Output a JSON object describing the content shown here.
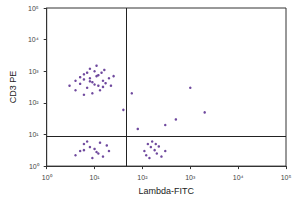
{
  "chart_data": {
    "type": "scatter",
    "x_label": "Lambda-FITC",
    "y_label": "CD3 PE",
    "log": true,
    "grid": false,
    "color": "#4b1c86",
    "xlim": [
      1,
      100000
    ],
    "ylim": [
      1,
      100000
    ],
    "xticks": [
      {
        "value": 1,
        "label": "10⁰"
      },
      {
        "value": 10,
        "label": "10¹"
      },
      {
        "value": 100,
        "label": "10²"
      },
      {
        "value": 1000,
        "label": "10³"
      },
      {
        "value": 10000,
        "label": "10⁴"
      },
      {
        "value": 100000,
        "label": "10⁵"
      }
    ],
    "yticks": [
      {
        "value": 1,
        "label": "10⁰"
      },
      {
        "value": 10,
        "label": "10¹"
      },
      {
        "value": 100,
        "label": "10²"
      },
      {
        "value": 1000,
        "label": "10³"
      },
      {
        "value": 10000,
        "label": "10⁴"
      },
      {
        "value": 100000,
        "label": "10⁵"
      }
    ],
    "gates": {
      "x": 46,
      "y": 9
    },
    "x": [
      5,
      8,
      12,
      6,
      10,
      15,
      4,
      7,
      9,
      11,
      14,
      20,
      6,
      8,
      13,
      5,
      10,
      17,
      7,
      12,
      9,
      4,
      22,
      6,
      11,
      15,
      8,
      16,
      3,
      25,
      5,
      8,
      12,
      6,
      10,
      15,
      4,
      7,
      9,
      18,
      11,
      6,
      13,
      20,
      110,
      150,
      200,
      130,
      180,
      250,
      120,
      160,
      220,
      300,
      140,
      190,
      60,
      500,
      80,
      1000,
      40,
      300,
      2000
    ],
    "values": [
      400,
      600,
      350,
      800,
      1000,
      500,
      250,
      300,
      450,
      700,
      900,
      600,
      550,
      1200,
      250,
      650,
      380,
      420,
      900,
      750,
      200,
      500,
      350,
      180,
      1500,
      320,
      480,
      1100,
      350,
      700,
      3,
      4,
      2.5,
      5,
      3.5,
      2,
      2.2,
      6,
      1.8,
      4.5,
      2.8,
      3.2,
      5.5,
      3,
      3,
      4,
      2.5,
      5,
      3.2,
      2,
      2.2,
      6,
      4.2,
      3,
      1.8,
      5,
      200,
      30,
      15,
      300,
      60,
      20,
      50
    ]
  }
}
